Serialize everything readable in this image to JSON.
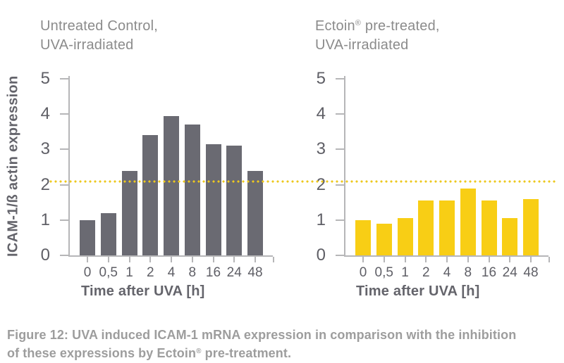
{
  "figure": {
    "caption_line1": "Figure 12: UVA induced ICAM-1 mRNA expression in comparison with the inhibition",
    "caption_line2_pre": "of these expressions by Ectoin",
    "caption_reg": "®",
    "caption_line2_post": " pre-treatment."
  },
  "charts": [
    {
      "title_pre": "Untreated Control,",
      "title_reg": "",
      "title_post": "",
      "title_line2": "UVA-irradiated"
    },
    {
      "title_pre": "Ectoin",
      "title_reg": "®",
      "title_post": " pre-treated,",
      "title_line2": "UVA-irradiated"
    }
  ],
  "colors": {
    "untreated_bar": "#6a6a72",
    "ectoin_bar": "#f8ce15",
    "reference_line": "#eec81e",
    "axis": "#b6b6b8"
  },
  "chart_data": [
    {
      "type": "bar",
      "title": "Untreated Control, UVA-irradiated",
      "categories": [
        "0",
        "0,5",
        "1",
        "2",
        "4",
        "8",
        "16",
        "24",
        "48"
      ],
      "values": [
        1.0,
        1.2,
        2.4,
        3.4,
        3.95,
        3.7,
        3.15,
        3.1,
        2.4
      ],
      "xlabel": "Time after UVA [h]",
      "ylabel": "ICAM-1/ß actin expression",
      "ylim": [
        0,
        5
      ],
      "yticks": [
        0,
        1,
        2,
        3,
        4,
        5
      ],
      "grid": false,
      "legend": "none",
      "bar_color": "#6a6a72",
      "reference_line": 2.1
    },
    {
      "type": "bar",
      "title": "Ectoin® pre-treated, UVA-irradiated",
      "categories": [
        "0",
        "0,5",
        "1",
        "2",
        "4",
        "8",
        "16",
        "24",
        "48"
      ],
      "values": [
        1.0,
        0.9,
        1.05,
        1.55,
        1.55,
        1.9,
        1.55,
        1.05,
        1.6
      ],
      "xlabel": "Time after UVA [h]",
      "ylabel": "",
      "ylim": [
        0,
        5
      ],
      "yticks": [
        0,
        1,
        2,
        3,
        4,
        5
      ],
      "grid": false,
      "legend": "none",
      "bar_color": "#f8ce15",
      "reference_line": 2.1
    }
  ]
}
